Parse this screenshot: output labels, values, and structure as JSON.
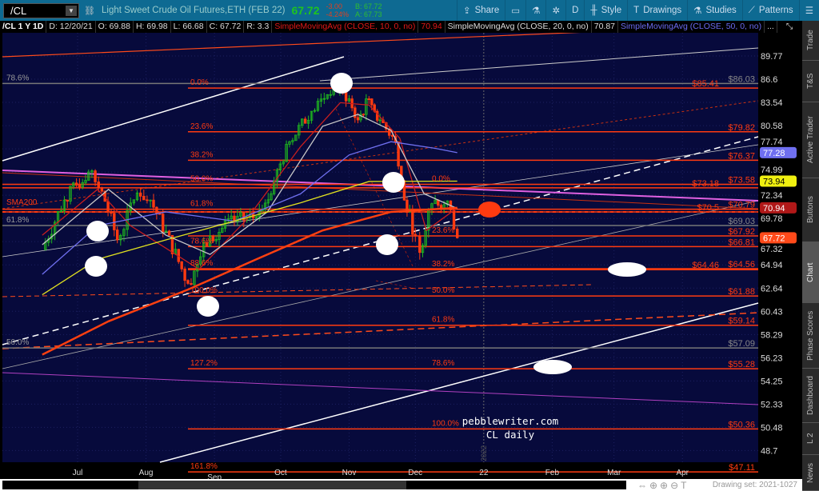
{
  "header": {
    "symbol": "/CL",
    "description": "Light Sweet Crude Oil Futures,ETH (FEB 22)",
    "last": "67.72",
    "change": "-3.00",
    "change_pct": "-4.24%",
    "bid": "B: 67.72",
    "ask": "A: 67.73"
  },
  "toolbar": [
    {
      "label": "Share",
      "icon": "share-icon"
    },
    {
      "label": "",
      "icon": "calendar-icon"
    },
    {
      "label": "",
      "icon": "flask-icon"
    },
    {
      "label": "",
      "icon": "gear-icon"
    },
    {
      "label": "D",
      "icon": ""
    },
    {
      "label": "Style",
      "icon": "candle-icon"
    },
    {
      "label": "Drawings",
      "icon": "text-t-icon"
    },
    {
      "label": "Studies",
      "icon": "flask-icon"
    },
    {
      "label": "Patterns",
      "icon": "pattern-icon"
    },
    {
      "label": "☰",
      "icon": "menu-icon"
    }
  ],
  "infobar": {
    "title": "/CL 1 Y 1D",
    "date": "D: 12/20/21",
    "open": "O: 69.88",
    "high": "H: 69.98",
    "low": "L: 66.68",
    "close": "C: 67.72",
    "range": "R: 3.3",
    "sma10": "SimpleMovingAvg (CLOSE, 10, 0, no)",
    "sma10_val": "70.94",
    "sma20": "SimpleMovingAvg (CLOSE, 20, 0, no)",
    "sma20_val": "70.87",
    "sma50": "SimpleMovingAvg (CLOSE, 50, 0, no)",
    "more": "..."
  },
  "sidebar": [
    {
      "label": "Trade"
    },
    {
      "label": "T&S"
    },
    {
      "label": "Active Trader"
    },
    {
      "label": "Buttons"
    },
    {
      "label": "Chart",
      "selected": true
    },
    {
      "label": "Phase Scores"
    },
    {
      "label": "Dashboard"
    },
    {
      "label": "L 2"
    },
    {
      "label": "News"
    }
  ],
  "footer": {
    "drawing_set": "Drawing set: 2021-1027"
  },
  "annotations": {
    "watermark1": "pebblewriter.com",
    "watermark2": "CL daily",
    "sma200": "SMA200",
    "year": "2022"
  },
  "chart_data": {
    "type": "candlestick",
    "scale": "log",
    "ylim": [
      47.5,
      91.5
    ],
    "y_ticks": [
      "89.77",
      "86.6",
      "83.54",
      "80.58",
      "77.74",
      "74.99",
      "72.34",
      "69.78",
      "67.32",
      "64.94",
      "62.64",
      "60.43",
      "58.29",
      "56.23",
      "54.25",
      "52.33",
      "50.48",
      "48.7"
    ],
    "x_ticks": [
      {
        "label": "Jul",
        "date": "2021-07-01"
      },
      {
        "label": "Aug",
        "date": "2021-08-01"
      },
      {
        "label": "Sep",
        "date": "2021-09-01"
      },
      {
        "label": "Oct",
        "date": "2021-10-01"
      },
      {
        "label": "Nov",
        "date": "2021-11-01"
      },
      {
        "label": "Dec",
        "date": "2021-12-01"
      },
      {
        "label": "22",
        "date": "2022-01-01"
      },
      {
        "label": "Feb",
        "date": "2022-02-01"
      },
      {
        "label": "Mar",
        "date": "2022-03-01"
      },
      {
        "label": "Apr",
        "date": "2022-04-01"
      }
    ],
    "closes": [
      [
        "2021-06-15",
        66.5
      ],
      [
        "2021-06-25",
        71.8
      ],
      [
        "2021-07-06",
        75.0
      ],
      [
        "2021-07-12",
        72.8
      ],
      [
        "2021-07-19",
        67.5
      ],
      [
        "2021-07-28",
        72.6
      ],
      [
        "2021-08-03",
        71.8
      ],
      [
        "2021-08-20",
        63.1
      ],
      [
        "2021-08-30",
        67.9
      ],
      [
        "2021-09-10",
        69.5
      ],
      [
        "2021-09-20",
        70.0
      ],
      [
        "2021-09-28",
        73.9
      ],
      [
        "2021-10-05",
        78.6
      ],
      [
        "2021-10-15",
        82.4
      ],
      [
        "2021-10-25",
        85.6
      ],
      [
        "2021-11-01",
        84.0
      ],
      [
        "2021-11-05",
        81.3
      ],
      [
        "2021-11-10",
        84.0
      ],
      [
        "2021-11-15",
        81.3
      ],
      [
        "2021-11-22",
        78.6
      ],
      [
        "2021-11-26",
        71.8
      ],
      [
        "2021-12-01",
        67.9
      ],
      [
        "2021-12-03",
        66.2
      ],
      [
        "2021-12-07",
        70.7
      ],
      [
        "2021-12-10",
        71.8
      ],
      [
        "2021-12-14",
        71.3
      ],
      [
        "2021-12-17",
        70.7
      ],
      [
        "2021-12-20",
        67.72
      ]
    ],
    "moving_averages": [
      {
        "name": "SMA10",
        "color": "#c81e1e",
        "points": [
          [
            "2021-06-15",
            68
          ],
          [
            "2021-07-10",
            73
          ],
          [
            "2021-07-25",
            69
          ],
          [
            "2021-08-25",
            64.5
          ],
          [
            "2021-09-15",
            69.5
          ],
          [
            "2021-10-10",
            78
          ],
          [
            "2021-10-28",
            83.5
          ],
          [
            "2021-11-10",
            83.2
          ],
          [
            "2021-11-24",
            79
          ],
          [
            "2021-12-06",
            68.5
          ],
          [
            "2021-12-20",
            70.94
          ]
        ]
      },
      {
        "name": "SMA20",
        "color": "#c8c8c8",
        "points": [
          [
            "2021-06-15",
            67
          ],
          [
            "2021-07-15",
            73
          ],
          [
            "2021-08-10",
            68
          ],
          [
            "2021-08-30",
            66
          ],
          [
            "2021-09-25",
            70.5
          ],
          [
            "2021-10-20",
            80.5
          ],
          [
            "2021-11-05",
            82
          ],
          [
            "2021-11-20",
            80
          ],
          [
            "2021-12-05",
            72.5
          ],
          [
            "2021-12-20",
            70.87
          ]
        ]
      },
      {
        "name": "SMA50",
        "color": "#7070f0",
        "points": [
          [
            "2021-06-15",
            64
          ],
          [
            "2021-07-10",
            69
          ],
          [
            "2021-08-10",
            70.5
          ],
          [
            "2021-09-10",
            69.5
          ],
          [
            "2021-10-10",
            72.5
          ],
          [
            "2021-11-01",
            77
          ],
          [
            "2021-11-20",
            78.6
          ],
          [
            "2021-12-10",
            77.8
          ],
          [
            "2021-12-20",
            77.28
          ]
        ]
      },
      {
        "name": "SMA100",
        "color": "#e0e020",
        "points": [
          [
            "2021-06-15",
            62
          ],
          [
            "2021-07-10",
            65.5
          ],
          [
            "2021-08-10",
            67.5
          ],
          [
            "2021-09-10",
            69.5
          ],
          [
            "2021-10-10",
            71.5
          ],
          [
            "2021-11-10",
            73.9
          ],
          [
            "2021-12-20",
            73.94
          ]
        ]
      },
      {
        "name": "SMA200",
        "color": "#ff4010",
        "points": [
          [
            "2021-06-15",
            56.5
          ],
          [
            "2021-07-15",
            59.5
          ],
          [
            "2021-08-20",
            62.5
          ],
          [
            "2021-09-20",
            65.5
          ],
          [
            "2021-10-20",
            68.5
          ],
          [
            "2021-11-20",
            70.5
          ],
          [
            "2021-12-20",
            70.94
          ]
        ]
      }
    ],
    "price_badges": [
      {
        "value": "77.28",
        "color": "#6f6ff0"
      },
      {
        "value": "73.94",
        "color": "#f0f010"
      },
      {
        "value": "70.94",
        "color": "#b01818"
      },
      {
        "value": "67.72",
        "color": "#ff4a1a"
      }
    ],
    "levels_red": [
      "85.41",
      "79.82",
      "76.37",
      "73.58",
      "73.18",
      "70.79",
      "70.5",
      "67.92",
      "66.81",
      "64.56",
      "64.46",
      "61.88",
      "59.14",
      "55.28",
      "50.36",
      "47.11"
    ],
    "levels_gray": [
      "86.03",
      "69.03",
      "57.09"
    ],
    "fib_left": [
      [
        "0.0%",
        85.41
      ],
      [
        "23.6%",
        79.82
      ],
      [
        "38.2%",
        76.37
      ],
      [
        "50.0%",
        73.58
      ],
      [
        "61.8%",
        70.79
      ],
      [
        "78.6%",
        66.81
      ],
      [
        "88.6%",
        64.56
      ],
      [
        "100.0%",
        61.88
      ],
      [
        "127.2%",
        55.28
      ],
      [
        "161.8%",
        47.11
      ]
    ],
    "fib_right": [
      [
        "0.0%",
        73.58
      ],
      [
        "23.6%",
        67.92
      ],
      [
        "38.2%",
        64.46
      ],
      [
        "50.0%",
        61.88
      ],
      [
        "61.8%",
        59.14
      ],
      [
        "78.6%",
        55.28
      ],
      [
        "100.0%",
        50.36
      ]
    ],
    "fib_gray": [
      [
        "78.6%",
        86.03
      ],
      [
        "61.8%",
        69.03
      ],
      [
        "50.0%",
        57.09
      ]
    ]
  }
}
